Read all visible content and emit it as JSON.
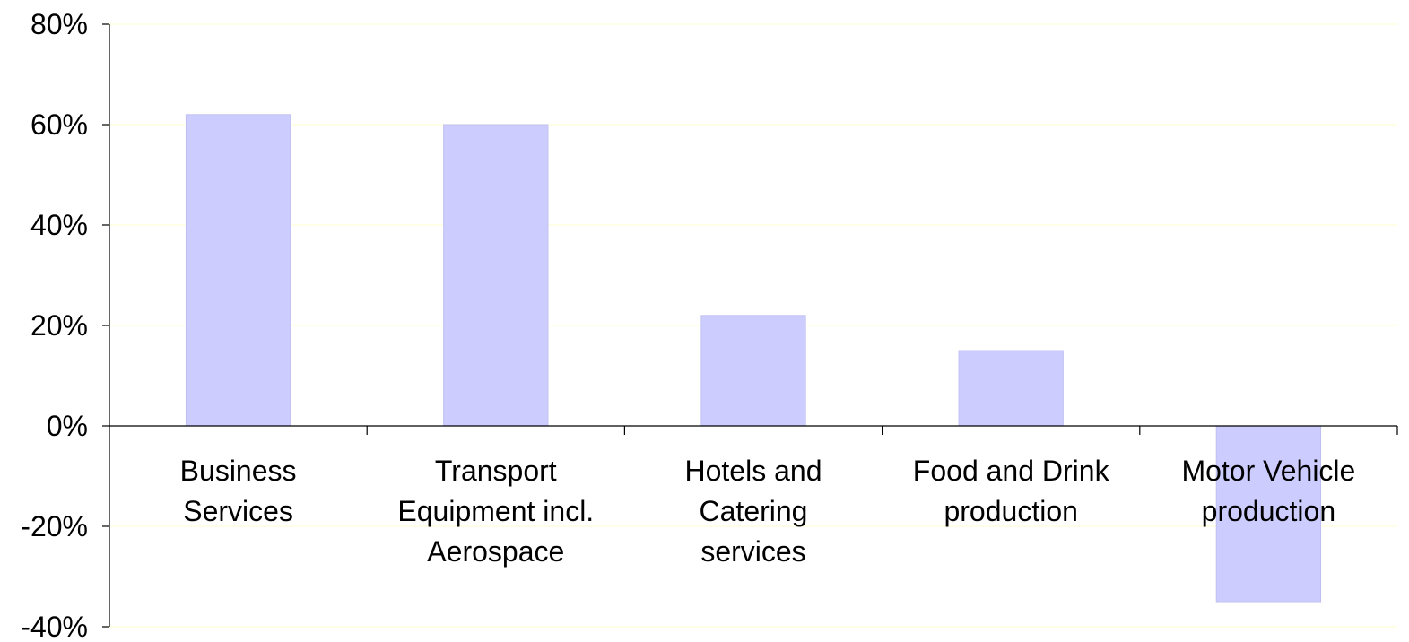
{
  "chart_data": {
    "type": "bar",
    "categories": [
      [
        "Business",
        "Services"
      ],
      [
        "Transport",
        "Equipment incl.",
        "Aerospace"
      ],
      [
        "Hotels and",
        "Catering",
        "services"
      ],
      [
        "Food and Drink",
        "production"
      ],
      [
        "Motor Vehicle",
        "production"
      ]
    ],
    "values": [
      62,
      60,
      22,
      15,
      -35
    ],
    "yticks": [
      "80%",
      "60%",
      "40%",
      "20%",
      "0%",
      "-20%",
      "-40%"
    ],
    "ylim": [
      -40,
      80
    ],
    "grid": true,
    "colors": {
      "bar": "#ccccff",
      "bar_edge": "#c0c0f0",
      "grid": "#ffffe0",
      "axis": "#000000"
    }
  }
}
